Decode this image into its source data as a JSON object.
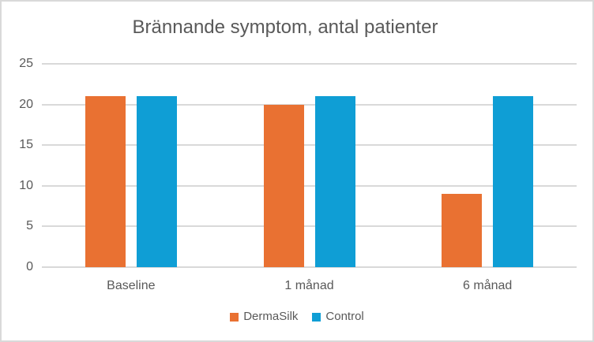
{
  "chart_data": {
    "type": "bar",
    "title": "Brännande symptom, antal patienter",
    "categories": [
      "Baseline",
      "1 månad",
      "6 månad"
    ],
    "series": [
      {
        "name": "DermaSilk",
        "color": "#E97132",
        "values": [
          21,
          20,
          9
        ]
      },
      {
        "name": "Control",
        "color": "#0F9ED5",
        "values": [
          21,
          21,
          21
        ]
      }
    ],
    "xlabel": "",
    "ylabel": "",
    "ylim": [
      0,
      25
    ],
    "yticks": [
      0,
      5,
      10,
      15,
      20,
      25
    ],
    "grid": "horizontal",
    "legend_position": "bottom",
    "colors": {
      "text": "#595959",
      "gridline": "#D9D9D9",
      "frame_border": "#D9D9D9",
      "background": "#FFFFFF"
    }
  }
}
